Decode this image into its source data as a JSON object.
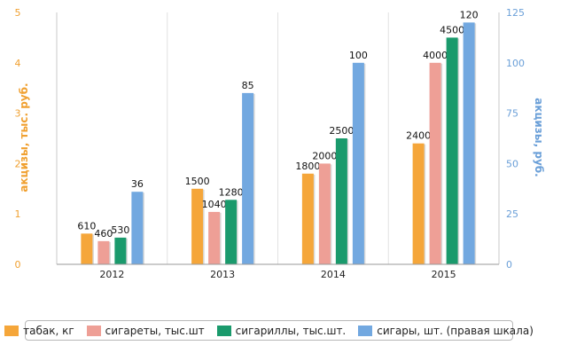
{
  "chart_data": {
    "type": "bar",
    "title": "",
    "categories": [
      "2012",
      "2013",
      "2014",
      "2015"
    ],
    "ylabel_left": "акцизы, тыс. руб.",
    "ylabel_right": "акцизы, руб.",
    "ylim_left": [
      0,
      5
    ],
    "ylim_right": [
      0,
      125
    ],
    "yticks_left": [
      "0",
      "1",
      "2",
      "3",
      "4",
      "5"
    ],
    "yticks_right": [
      "0",
      "25",
      "50",
      "75",
      "100",
      "125"
    ],
    "grid": "vertical separators between categories",
    "legend_position": "bottom",
    "series": [
      {
        "name": "табак, кг",
        "axis": "left",
        "color": "#f5a63a",
        "values": [
          0.61,
          1.5,
          1.8,
          2.4
        ],
        "labels": [
          "610",
          "1500",
          "1800",
          "2400"
        ]
      },
      {
        "name": "сигареты, тыс.шт",
        "axis": "left",
        "color": "#ee9f96",
        "values": [
          0.46,
          1.04,
          2.0,
          4.0
        ],
        "labels": [
          "460",
          "1040",
          "2000",
          "4000"
        ]
      },
      {
        "name": "сигариллы, тыс.шт.",
        "axis": "left",
        "color": "#1a9a6c",
        "values": [
          0.53,
          1.28,
          2.5,
          4.5
        ],
        "labels": [
          "530",
          "1280",
          "2500",
          "4500"
        ]
      },
      {
        "name": "сигары, шт. (правая шкала)",
        "axis": "right",
        "color": "#72a8e0",
        "values": [
          36,
          85,
          100,
          120
        ],
        "labels": [
          "36",
          "85",
          "100",
          "120"
        ]
      }
    ]
  }
}
